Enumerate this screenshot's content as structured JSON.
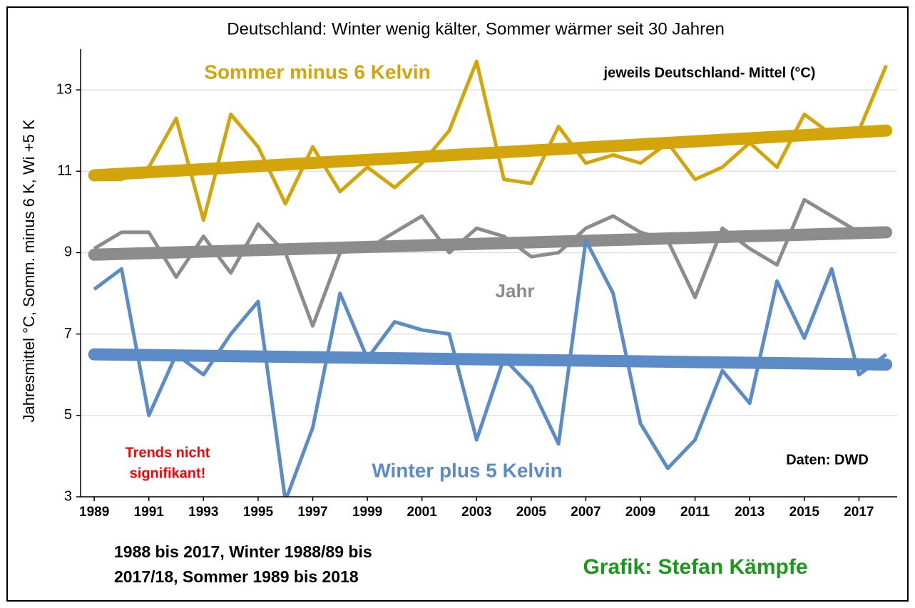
{
  "chart_data": {
    "type": "line",
    "title": "Deutschland: Winter wenig kälter, Sommer wärmer seit 30 Jahren",
    "ylabel": "Jahresmittel °C, Somm. minus 6 K, Wi +5 K",
    "x": [
      1989,
      1990,
      1991,
      1992,
      1993,
      1994,
      1995,
      1996,
      1997,
      1998,
      1999,
      2000,
      2001,
      2002,
      2003,
      2004,
      2005,
      2006,
      2007,
      2008,
      2009,
      2010,
      2011,
      2012,
      2013,
      2014,
      2015,
      2016,
      2017,
      2018
    ],
    "xlim": [
      1988.5,
      2018.4
    ],
    "xticks": [
      1989,
      1991,
      1993,
      1995,
      1997,
      1999,
      2001,
      2003,
      2005,
      2007,
      2009,
      2011,
      2013,
      2015,
      2017
    ],
    "ylim": [
      3,
      14
    ],
    "yticks": [
      3,
      5,
      7,
      9,
      11,
      13
    ],
    "grid": true,
    "series": [
      {
        "name": "Sommer minus 6 Kelvin",
        "color": "#d4a50a",
        "values": [
          10.8,
          10.8,
          11.1,
          12.3,
          9.8,
          12.4,
          11.6,
          10.2,
          11.6,
          10.5,
          11.1,
          10.6,
          11.2,
          12.0,
          13.7,
          10.8,
          10.7,
          12.1,
          11.2,
          11.4,
          11.2,
          11.7,
          10.8,
          11.1,
          11.7,
          11.1,
          12.4,
          11.9,
          12.0,
          13.6
        ],
        "trend": [
          10.9,
          12.0
        ]
      },
      {
        "name": "Jahr",
        "color": "#8c8c8c",
        "values": [
          9.1,
          9.5,
          9.5,
          8.4,
          9.4,
          8.5,
          9.7,
          9.0,
          7.2,
          9.0,
          9.1,
          9.5,
          9.9,
          9.0,
          9.6,
          9.4,
          8.9,
          9.0,
          9.6,
          9.9,
          9.5,
          9.3,
          7.9,
          9.6,
          9.1,
          8.7,
          10.3,
          9.9,
          9.5,
          null
        ],
        "trend": [
          8.95,
          9.5
        ]
      },
      {
        "name": "Winter plus 5 Kelvin",
        "color": "#5b8cc8",
        "values": [
          8.1,
          8.6,
          5.0,
          6.5,
          6.0,
          7.0,
          7.8,
          2.9,
          4.7,
          8.0,
          6.4,
          7.3,
          7.1,
          7.0,
          4.4,
          6.4,
          5.7,
          4.3,
          9.3,
          8.0,
          4.8,
          3.7,
          4.4,
          6.1,
          5.3,
          8.3,
          6.9,
          8.6,
          6.0,
          6.5
        ],
        "trend": [
          6.5,
          6.25
        ]
      }
    ],
    "annotations": {
      "unit_note": "jeweils Deutschland- Mittel (°C)",
      "significance": [
        "Trends nicht",
        "signifikant!"
      ],
      "source": "Daten: DWD",
      "period": [
        "1988 bis 2017, Winter 1988/89 bis",
        "2017/18, Sommer 1989 bis 2018"
      ],
      "credit": "Grafik: Stefan Kämpfe"
    }
  }
}
